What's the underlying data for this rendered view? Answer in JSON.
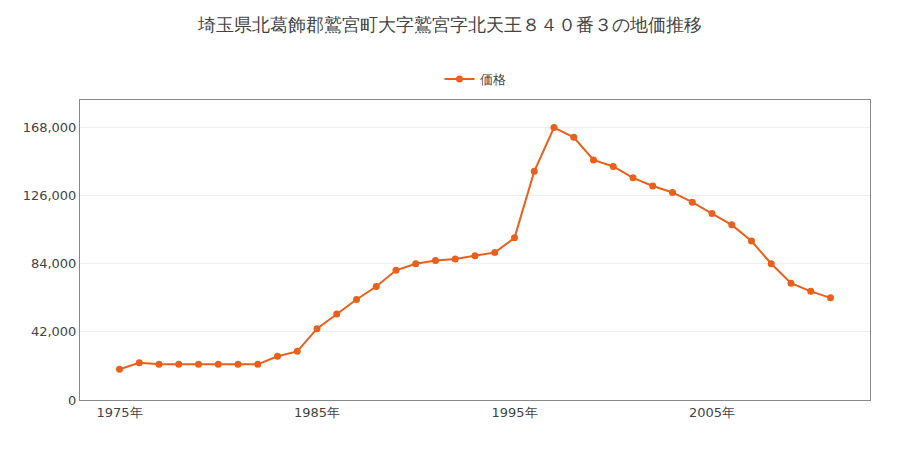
{
  "chart_data": {
    "type": "line",
    "title": "埼玉県北葛飾郡鷲宮町大字鷲宮字北天王８４０番３の地価推移",
    "x": [
      1975,
      1976,
      1977,
      1978,
      1979,
      1980,
      1981,
      1982,
      1983,
      1984,
      1985,
      1986,
      1987,
      1988,
      1989,
      1990,
      1991,
      1992,
      1993,
      1994,
      1995,
      1996,
      1997,
      1998,
      1999,
      2000,
      2001,
      2002,
      2003,
      2004,
      2005,
      2006,
      2007,
      2008,
      2009,
      2010,
      2011
    ],
    "series": [
      {
        "name": "価格",
        "color": "#e8601c",
        "marker": "circle",
        "values": [
          19000,
          23000,
          22000,
          22000,
          22000,
          22000,
          22000,
          22000,
          27000,
          30000,
          44000,
          53000,
          62000,
          70000,
          80000,
          84000,
          86000,
          87000,
          89000,
          91000,
          100000,
          141000,
          168000,
          162000,
          148000,
          144000,
          137000,
          132000,
          128000,
          122000,
          115000,
          108000,
          98000,
          84000,
          72000,
          67000,
          63000
        ]
      }
    ],
    "xlim": [
      1973,
      2013
    ],
    "xticks": [
      {
        "value": 1975,
        "label": "1975年"
      },
      {
        "value": 1985,
        "label": "1985年"
      },
      {
        "value": 1995,
        "label": "1995年"
      },
      {
        "value": 2005,
        "label": "2005年"
      }
    ],
    "ylim": [
      0,
      185000
    ],
    "yticks": [
      0,
      {
        "value": 42000,
        "label": "42,000"
      },
      {
        "value": 84000,
        "label": "84,000"
      },
      {
        "value": 126000,
        "label": "126,000"
      },
      {
        "value": 168000,
        "label": "168,000"
      }
    ],
    "grid": "y",
    "legend": "upper center"
  }
}
